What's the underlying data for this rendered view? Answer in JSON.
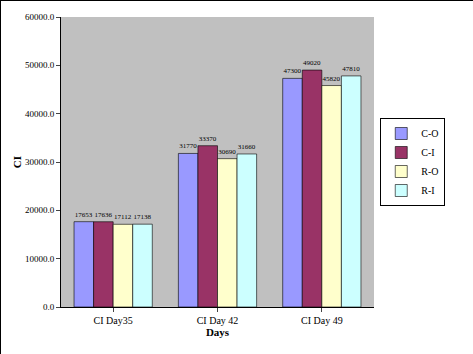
{
  "chart_data": {
    "type": "bar",
    "x_label": "Days",
    "y_label": "CI",
    "categories": [
      "CI Day35",
      "CI Day 42",
      "CI Day 49"
    ],
    "series": [
      {
        "name": "C-O",
        "color": "#9999ff",
        "values": [
          17653,
          31770,
          47300
        ]
      },
      {
        "name": "C-I",
        "color": "#993366",
        "values": [
          17636,
          33370,
          49020
        ]
      },
      {
        "name": "R-O",
        "color": "#ffffcc",
        "values": [
          17112,
          30690,
          45820
        ]
      },
      {
        "name": "R-I",
        "color": "#ccffff",
        "values": [
          17138,
          31660,
          47810
        ]
      }
    ],
    "ylim": [
      0,
      60000
    ],
    "yticks": [
      {
        "value": 0,
        "label": "0.0"
      },
      {
        "value": 10000,
        "label": "10000.0"
      },
      {
        "value": 20000,
        "label": "20000.0"
      },
      {
        "value": 30000,
        "label": "30000.0"
      },
      {
        "value": 40000,
        "label": "40000.0"
      },
      {
        "value": 50000,
        "label": "50000.0"
      },
      {
        "value": 60000,
        "label": "60000.0"
      }
    ],
    "grid": false,
    "legend": "right",
    "data_labels": true
  }
}
